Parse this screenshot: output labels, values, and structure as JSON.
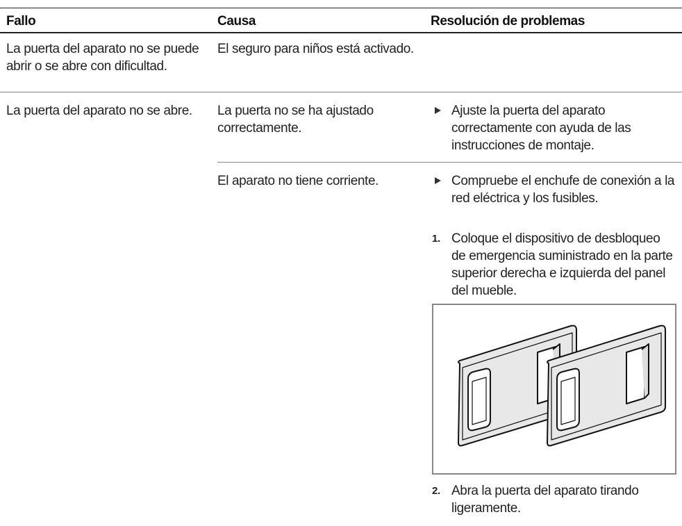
{
  "table": {
    "header": [
      "Fallo",
      "Causa",
      "Resolución de problemas"
    ],
    "rows": [
      {
        "fault": "La puerta del aparato no se puede abrir o se abre con dificultad.",
        "causes": [
          {
            "cause": "El seguro para niños está activado."
          }
        ]
      },
      {
        "fault": "La puerta del aparato no se abre.",
        "causes": [
          {
            "cause": "La puerta no se ha ajustado correctamente.",
            "remedies": [
              {
                "text": "Ajuste la puerta del aparato correctamente con ayuda de las instrucciones de montaje."
              }
            ]
          },
          {
            "cause": "El aparato no tiene corriente.",
            "remedies": [
              {
                "text": "Compruebe el enchufe de conexión a la red eléctrica y los fusibles."
              },
              {
                "step": "1.",
                "text": "Coloque el dispositivo de desbloqueo de emergencia suministrado en la parte superior derecha e izquierda del panel del mueble."
              },
              {
                "step": "2.",
                "text": "Abra la puerta del aparato tirando ligeramente."
              }
            ]
          }
        ]
      }
    ]
  }
}
